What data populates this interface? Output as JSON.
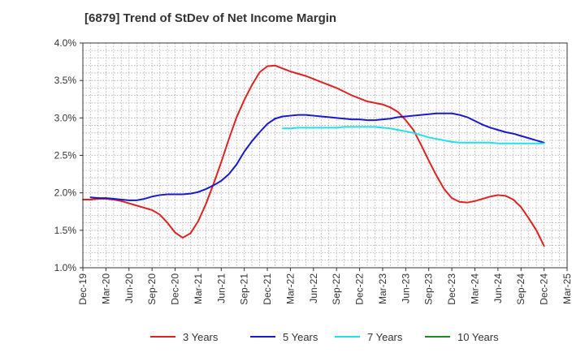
{
  "chart_data": {
    "type": "line",
    "title": "[6879]  Trend of StDev of Net Income Margin",
    "xlabel": "",
    "ylabel": "",
    "ylim": [
      1.0,
      4.0
    ],
    "y_ticks": [
      "1.0%",
      "1.5%",
      "2.0%",
      "2.5%",
      "3.0%",
      "3.5%",
      "4.0%"
    ],
    "x_ticks": [
      "Dec-19",
      "Mar-20",
      "Jun-20",
      "Sep-20",
      "Dec-20",
      "Mar-21",
      "Jun-21",
      "Sep-21",
      "Dec-21",
      "Mar-22",
      "Jun-22",
      "Sep-22",
      "Dec-22",
      "Mar-23",
      "Jun-23",
      "Sep-23",
      "Dec-23",
      "Mar-24",
      "Jun-24",
      "Sep-24",
      "Dec-24",
      "Mar-25"
    ],
    "grid": true,
    "legend_position": "bottom",
    "series": [
      {
        "name": "3 Years",
        "color": "#dd2222",
        "points": [
          [
            "Dec-19",
            1.91
          ],
          [
            "Jan-20",
            1.91
          ],
          [
            "Feb-20",
            1.92
          ],
          [
            "Mar-20",
            1.92
          ],
          [
            "Apr-20",
            1.91
          ],
          [
            "May-20",
            1.89
          ],
          [
            "Jun-20",
            1.86
          ],
          [
            "Jul-20",
            1.83
          ],
          [
            "Aug-20",
            1.8
          ],
          [
            "Sep-20",
            1.77
          ],
          [
            "Oct-20",
            1.71
          ],
          [
            "Nov-20",
            1.6
          ],
          [
            "Dec-20",
            1.47
          ],
          [
            "Jan-21",
            1.4
          ],
          [
            "Feb-21",
            1.46
          ],
          [
            "Mar-21",
            1.62
          ],
          [
            "Apr-21",
            1.85
          ],
          [
            "May-21",
            2.12
          ],
          [
            "Jun-21",
            2.41
          ],
          [
            "Jul-21",
            2.72
          ],
          [
            "Aug-21",
            3.01
          ],
          [
            "Sep-21",
            3.24
          ],
          [
            "Oct-21",
            3.44
          ],
          [
            "Nov-21",
            3.61
          ],
          [
            "Dec-21",
            3.69
          ],
          [
            "Jan-22",
            3.7
          ],
          [
            "Feb-22",
            3.66
          ],
          [
            "Mar-22",
            3.62
          ],
          [
            "Apr-22",
            3.59
          ],
          [
            "May-22",
            3.56
          ],
          [
            "Jun-22",
            3.52
          ],
          [
            "Jul-22",
            3.48
          ],
          [
            "Aug-22",
            3.44
          ],
          [
            "Sep-22",
            3.4
          ],
          [
            "Oct-22",
            3.35
          ],
          [
            "Nov-22",
            3.3
          ],
          [
            "Dec-22",
            3.26
          ],
          [
            "Jan-23",
            3.22
          ],
          [
            "Feb-23",
            3.2
          ],
          [
            "Mar-23",
            3.18
          ],
          [
            "Apr-23",
            3.14
          ],
          [
            "May-23",
            3.08
          ],
          [
            "Jun-23",
            2.97
          ],
          [
            "Jul-23",
            2.84
          ],
          [
            "Aug-23",
            2.64
          ],
          [
            "Sep-23",
            2.43
          ],
          [
            "Oct-23",
            2.23
          ],
          [
            "Nov-23",
            2.05
          ],
          [
            "Dec-23",
            1.93
          ],
          [
            "Jan-24",
            1.88
          ],
          [
            "Feb-24",
            1.87
          ],
          [
            "Mar-24",
            1.89
          ],
          [
            "Apr-24",
            1.92
          ],
          [
            "May-24",
            1.95
          ],
          [
            "Jun-24",
            1.97
          ],
          [
            "Jul-24",
            1.96
          ],
          [
            "Aug-24",
            1.91
          ],
          [
            "Sep-24",
            1.81
          ],
          [
            "Oct-24",
            1.66
          ],
          [
            "Nov-24",
            1.5
          ],
          [
            "Dec-24",
            1.29
          ]
        ]
      },
      {
        "name": "5 Years",
        "color": "#1a1acc",
        "points": [
          [
            "Jan-20",
            1.94
          ],
          [
            "Feb-20",
            1.93
          ],
          [
            "Mar-20",
            1.93
          ],
          [
            "Apr-20",
            1.92
          ],
          [
            "May-20",
            1.91
          ],
          [
            "Jun-20",
            1.9
          ],
          [
            "Jul-20",
            1.9
          ],
          [
            "Aug-20",
            1.92
          ],
          [
            "Sep-20",
            1.95
          ],
          [
            "Oct-20",
            1.97
          ],
          [
            "Nov-20",
            1.98
          ],
          [
            "Dec-20",
            1.98
          ],
          [
            "Jan-21",
            1.98
          ],
          [
            "Feb-21",
            1.99
          ],
          [
            "Mar-21",
            2.01
          ],
          [
            "Apr-21",
            2.05
          ],
          [
            "May-21",
            2.1
          ],
          [
            "Jun-21",
            2.16
          ],
          [
            "Jul-21",
            2.25
          ],
          [
            "Aug-21",
            2.38
          ],
          [
            "Sep-21",
            2.55
          ],
          [
            "Oct-21",
            2.69
          ],
          [
            "Nov-21",
            2.81
          ],
          [
            "Dec-21",
            2.92
          ],
          [
            "Jan-22",
            2.99
          ],
          [
            "Feb-22",
            3.02
          ],
          [
            "Mar-22",
            3.03
          ],
          [
            "Apr-22",
            3.04
          ],
          [
            "May-22",
            3.04
          ],
          [
            "Jun-22",
            3.03
          ],
          [
            "Jul-22",
            3.02
          ],
          [
            "Aug-22",
            3.01
          ],
          [
            "Sep-22",
            3.0
          ],
          [
            "Oct-22",
            2.99
          ],
          [
            "Nov-22",
            2.98
          ],
          [
            "Dec-22",
            2.98
          ],
          [
            "Jan-23",
            2.97
          ],
          [
            "Feb-23",
            2.97
          ],
          [
            "Mar-23",
            2.98
          ],
          [
            "Apr-23",
            2.99
          ],
          [
            "May-23",
            3.01
          ],
          [
            "Jun-23",
            3.02
          ],
          [
            "Jul-23",
            3.03
          ],
          [
            "Aug-23",
            3.04
          ],
          [
            "Sep-23",
            3.05
          ],
          [
            "Oct-23",
            3.06
          ],
          [
            "Nov-23",
            3.06
          ],
          [
            "Dec-23",
            3.06
          ],
          [
            "Jan-24",
            3.04
          ],
          [
            "Feb-24",
            3.01
          ],
          [
            "Mar-24",
            2.96
          ],
          [
            "Apr-24",
            2.91
          ],
          [
            "May-24",
            2.87
          ],
          [
            "Jun-24",
            2.84
          ],
          [
            "Jul-24",
            2.81
          ],
          [
            "Aug-24",
            2.79
          ],
          [
            "Sep-24",
            2.76
          ],
          [
            "Oct-24",
            2.73
          ],
          [
            "Nov-24",
            2.7
          ],
          [
            "Dec-24",
            2.67
          ]
        ]
      },
      {
        "name": "7 Years",
        "color": "#22e0e8",
        "points": [
          [
            "Feb-22",
            2.86
          ],
          [
            "Mar-22",
            2.86
          ],
          [
            "Apr-22",
            2.87
          ],
          [
            "May-22",
            2.87
          ],
          [
            "Jun-22",
            2.87
          ],
          [
            "Jul-22",
            2.87
          ],
          [
            "Aug-22",
            2.87
          ],
          [
            "Sep-22",
            2.87
          ],
          [
            "Oct-22",
            2.88
          ],
          [
            "Nov-22",
            2.88
          ],
          [
            "Dec-22",
            2.88
          ],
          [
            "Jan-23",
            2.88
          ],
          [
            "Feb-23",
            2.88
          ],
          [
            "Mar-23",
            2.87
          ],
          [
            "Apr-23",
            2.86
          ],
          [
            "May-23",
            2.84
          ],
          [
            "Jun-23",
            2.82
          ],
          [
            "Jul-23",
            2.8
          ],
          [
            "Aug-23",
            2.77
          ],
          [
            "Sep-23",
            2.74
          ],
          [
            "Oct-23",
            2.72
          ],
          [
            "Nov-23",
            2.7
          ],
          [
            "Dec-23",
            2.68
          ],
          [
            "Jan-24",
            2.67
          ],
          [
            "Feb-24",
            2.67
          ],
          [
            "Mar-24",
            2.67
          ],
          [
            "Apr-24",
            2.67
          ],
          [
            "May-24",
            2.67
          ],
          [
            "Jun-24",
            2.66
          ],
          [
            "Jul-24",
            2.66
          ],
          [
            "Aug-24",
            2.66
          ],
          [
            "Sep-24",
            2.66
          ],
          [
            "Oct-24",
            2.66
          ],
          [
            "Nov-24",
            2.66
          ],
          [
            "Dec-24",
            2.66
          ]
        ]
      },
      {
        "name": "10 Years",
        "color": "#228822",
        "points": []
      }
    ]
  }
}
